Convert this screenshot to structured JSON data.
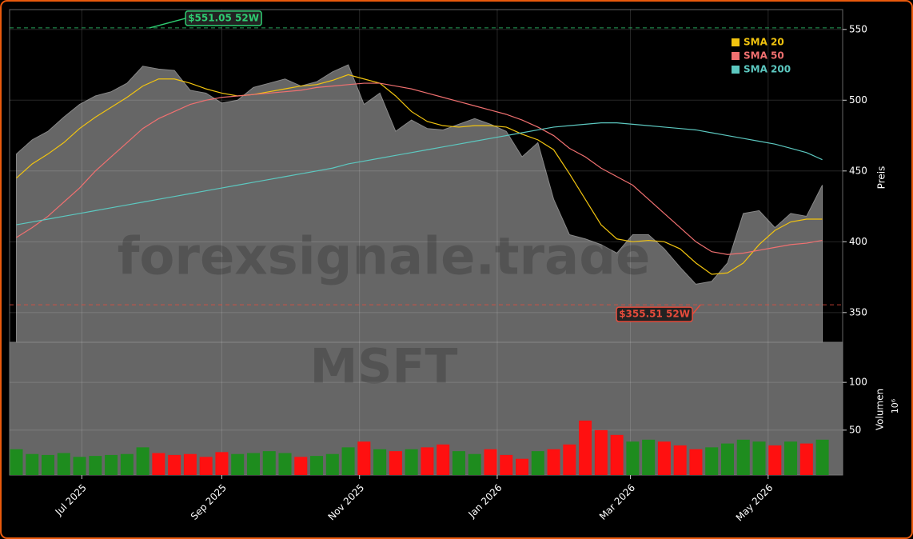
{
  "chart_data": {
    "type": "stock",
    "ticker": "MSFT",
    "watermark": "forexsignale.trade",
    "x": [
      "2025-06-02",
      "2025-06-09",
      "2025-06-16",
      "2025-06-23",
      "2025-06-30",
      "2025-07-07",
      "2025-07-14",
      "2025-07-21",
      "2025-07-28",
      "2025-08-04",
      "2025-08-11",
      "2025-08-18",
      "2025-08-25",
      "2025-09-01",
      "2025-09-08",
      "2025-09-15",
      "2025-09-22",
      "2025-09-29",
      "2025-10-06",
      "2025-10-13",
      "2025-10-20",
      "2025-10-27",
      "2025-11-03",
      "2025-11-10",
      "2025-11-17",
      "2025-11-24",
      "2025-12-01",
      "2025-12-08",
      "2025-12-15",
      "2025-12-22",
      "2025-12-29",
      "2026-01-05",
      "2026-01-12",
      "2026-01-19",
      "2026-01-26",
      "2026-02-02",
      "2026-02-09",
      "2026-02-16",
      "2026-02-23",
      "2026-03-02",
      "2026-03-09",
      "2026-03-16",
      "2026-03-23",
      "2026-03-30",
      "2026-04-06",
      "2026-04-13",
      "2026-04-20",
      "2026-04-27",
      "2026-05-04",
      "2026-05-11",
      "2026-05-18",
      "2026-05-25"
    ],
    "close": [
      462,
      472,
      478,
      488,
      497,
      503,
      506,
      512,
      524,
      522,
      521,
      507,
      505,
      498,
      500,
      509,
      512,
      515,
      510,
      513,
      520,
      525,
      497,
      505,
      478,
      486,
      480,
      479,
      483,
      487,
      483,
      478,
      460,
      470,
      430,
      405,
      402,
      398,
      392,
      405,
      405,
      395,
      382,
      370,
      372,
      385,
      420,
      422,
      410,
      420,
      418,
      440
    ],
    "series": [
      {
        "name": "SMA 20",
        "color": "#f2c40f",
        "values": [
          445,
          455,
          462,
          470,
          480,
          488,
          495,
          502,
          510,
          515,
          515,
          512,
          508,
          505,
          503,
          504,
          506,
          508,
          510,
          511,
          514,
          518,
          515,
          512,
          503,
          492,
          485,
          482,
          481,
          482,
          482,
          481,
          476,
          472,
          465,
          448,
          430,
          412,
          402,
          400,
          401,
          400,
          395,
          385,
          377,
          378,
          385,
          398,
          408,
          414,
          416,
          416
        ]
      },
      {
        "name": "SMA 50",
        "color": "#f07070",
        "values": [
          403,
          410,
          418,
          428,
          438,
          450,
          460,
          470,
          480,
          487,
          492,
          497,
          500,
          502,
          503,
          504,
          505,
          506,
          507,
          509,
          510,
          511,
          512,
          512,
          510,
          508,
          505,
          502,
          499,
          496,
          493,
          490,
          486,
          481,
          475,
          466,
          460,
          452,
          446,
          440,
          430,
          420,
          410,
          400,
          393,
          391,
          392,
          394,
          396,
          398,
          399,
          401
        ]
      },
      {
        "name": "SMA 200",
        "color": "#5cc8c0",
        "values": [
          412,
          414,
          416,
          418,
          420,
          422,
          424,
          426,
          428,
          430,
          432,
          434,
          436,
          438,
          440,
          442,
          444,
          446,
          448,
          450,
          452,
          455,
          457,
          459,
          461,
          463,
          465,
          467,
          469,
          471,
          473,
          475,
          477,
          479,
          481,
          482,
          483,
          484,
          484,
          483,
          482,
          481,
          480,
          479,
          477,
          475,
          473,
          471,
          469,
          466,
          463,
          458
        ]
      }
    ],
    "volume": [
      30,
      25,
      24,
      26,
      22,
      23,
      24,
      25,
      32,
      26,
      24,
      25,
      22,
      27,
      25,
      26,
      28,
      26,
      22,
      23,
      25,
      32,
      38,
      30,
      28,
      30,
      32,
      35,
      28,
      25,
      30,
      24,
      20,
      28,
      30,
      35,
      60,
      50,
      45,
      38,
      40,
      38,
      34,
      30,
      32,
      36,
      40,
      38,
      34,
      38,
      36,
      40
    ],
    "annotations": [
      {
        "text": "$551.05 52W",
        "value": 551.05,
        "x": "2025-07-31",
        "color": "#2ecc71"
      },
      {
        "text": "$355.51 52W",
        "value": 355.51,
        "x": "2026-04-01",
        "color": "#e74c3c"
      }
    ],
    "xlim": [
      "2025-05-30",
      "2026-06-03"
    ],
    "xticks": [
      {
        "value": "2025-07-01",
        "label": "Jul 2025"
      },
      {
        "value": "2025-09-01",
        "label": "Sep 2025"
      },
      {
        "value": "2025-11-01",
        "label": "Nov 2025"
      },
      {
        "value": "2026-01-01",
        "label": "Jan 2026"
      },
      {
        "value": "2026-03-01",
        "label": "Mar 2026"
      },
      {
        "value": "2026-05-01",
        "label": "May 2026"
      }
    ],
    "ylim": [
      329,
      564
    ],
    "yticks": [
      350,
      400,
      450,
      500,
      550
    ],
    "ylabel": "Preis",
    "y2lim": [
      3,
      142
    ],
    "y2ticks": [
      50,
      100
    ],
    "y2label": "Volumen",
    "y2unit": "10⁶",
    "grid": true,
    "legend": "upper right"
  }
}
